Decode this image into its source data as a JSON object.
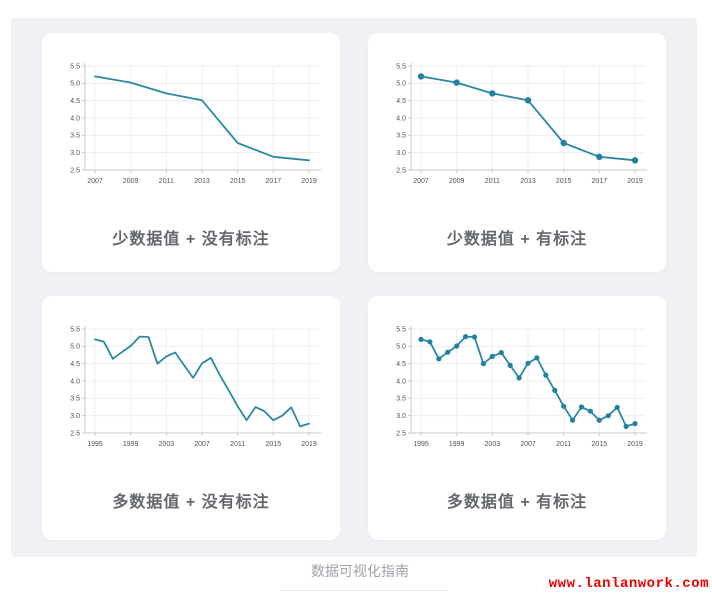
{
  "page": {
    "footer_title": "数据可视化指南",
    "watermark": "www.lanlanwork.com",
    "colors": {
      "panel_bg": "#f0f1f5",
      "card_bg": "#ffffff",
      "line": "#2a89a0",
      "marker": "#2381a0",
      "grid": "#f0edee",
      "axis": "#c7c9cd",
      "tick_text": "#4e5256",
      "caption_text": "#65696f",
      "footer_text": "#9fa3a8",
      "watermark_red": "#ea0000"
    }
  },
  "chart_data": [
    {
      "type": "line",
      "caption": "少数据值 + 没有标注",
      "markers": false,
      "x": [
        2007,
        2009,
        2011,
        2013,
        2015,
        2017,
        2019
      ],
      "values": [
        5.2,
        5.02,
        4.71,
        4.51,
        3.28,
        2.88,
        2.78
      ],
      "xticks": [
        2007,
        2009,
        2011,
        2013,
        2015,
        2017,
        2019
      ],
      "yticks": [
        5.5,
        5.0,
        4.5,
        4.0,
        3.5,
        3.0,
        2.5
      ],
      "ylim": [
        2.5,
        5.5
      ],
      "grid": true,
      "legend": "none"
    },
    {
      "type": "line",
      "caption": "少数据值 + 有标注",
      "markers": true,
      "x": [
        2007,
        2009,
        2011,
        2013,
        2015,
        2017,
        2019
      ],
      "values": [
        5.2,
        5.02,
        4.71,
        4.51,
        3.28,
        2.88,
        2.78
      ],
      "xticks": [
        2007,
        2009,
        2011,
        2013,
        2015,
        2017,
        2019
      ],
      "yticks": [
        5.5,
        5.0,
        4.5,
        4.0,
        3.5,
        3.0,
        2.5
      ],
      "ylim": [
        2.5,
        5.5
      ],
      "grid": true,
      "legend": "none"
    },
    {
      "type": "line",
      "caption": "多数据值 + 没有标注",
      "markers": false,
      "x": [
        1995,
        1996,
        1997,
        1998,
        1999,
        2000,
        2001,
        2002,
        2003,
        2004,
        2005,
        2006,
        2007,
        2008,
        2009,
        2010,
        2011,
        2012,
        2013,
        2014,
        2015,
        2016,
        2017,
        2018,
        2019
      ],
      "values": [
        5.2,
        5.13,
        4.64,
        4.83,
        5.01,
        5.28,
        5.27,
        4.5,
        4.71,
        4.82,
        4.45,
        4.09,
        4.51,
        4.67,
        4.17,
        3.73,
        3.27,
        2.87,
        3.25,
        3.13,
        2.87,
        3.0,
        3.24,
        2.69,
        2.77
      ],
      "xticks": [
        1995,
        1999,
        2003,
        2007,
        2011,
        2015,
        2019
      ],
      "yticks": [
        5.5,
        5.0,
        4.5,
        4.0,
        3.5,
        3.0,
        2.5
      ],
      "ylim": [
        2.5,
        5.5
      ],
      "grid": true,
      "legend": "none"
    },
    {
      "type": "line",
      "caption": "多数据值 + 有标注",
      "markers": true,
      "x": [
        1995,
        1996,
        1997,
        1998,
        1999,
        2000,
        2001,
        2002,
        2003,
        2004,
        2005,
        2006,
        2007,
        2008,
        2009,
        2010,
        2011,
        2012,
        2013,
        2014,
        2015,
        2016,
        2017,
        2018,
        2019
      ],
      "values": [
        5.2,
        5.13,
        4.64,
        4.83,
        5.01,
        5.28,
        5.27,
        4.5,
        4.71,
        4.82,
        4.45,
        4.09,
        4.51,
        4.67,
        4.17,
        3.73,
        3.27,
        2.87,
        3.25,
        3.13,
        2.87,
        3.0,
        3.24,
        2.69,
        2.77
      ],
      "xticks": [
        1995,
        1999,
        2003,
        2007,
        2011,
        2015,
        2019
      ],
      "yticks": [
        5.5,
        5.0,
        4.5,
        4.0,
        3.5,
        3.0,
        2.5
      ],
      "ylim": [
        2.5,
        5.5
      ],
      "grid": true,
      "legend": "none"
    }
  ]
}
